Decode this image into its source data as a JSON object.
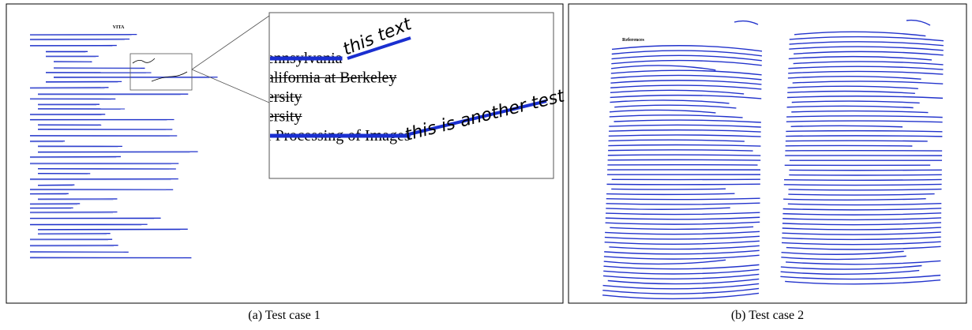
{
  "figure": {
    "panels": [
      {
        "caption": "(a) Test case 1",
        "page_title": "VITA",
        "zoom_lines": [
          "ennsylvania",
          "alifornia at Berkeley",
          "ersity",
          "ersity",
          "l Processing of Images"
        ],
        "annotations": [
          "this text",
          "this is another test"
        ]
      },
      {
        "caption": "(b) Test case 2",
        "heading": "References"
      }
    ]
  }
}
